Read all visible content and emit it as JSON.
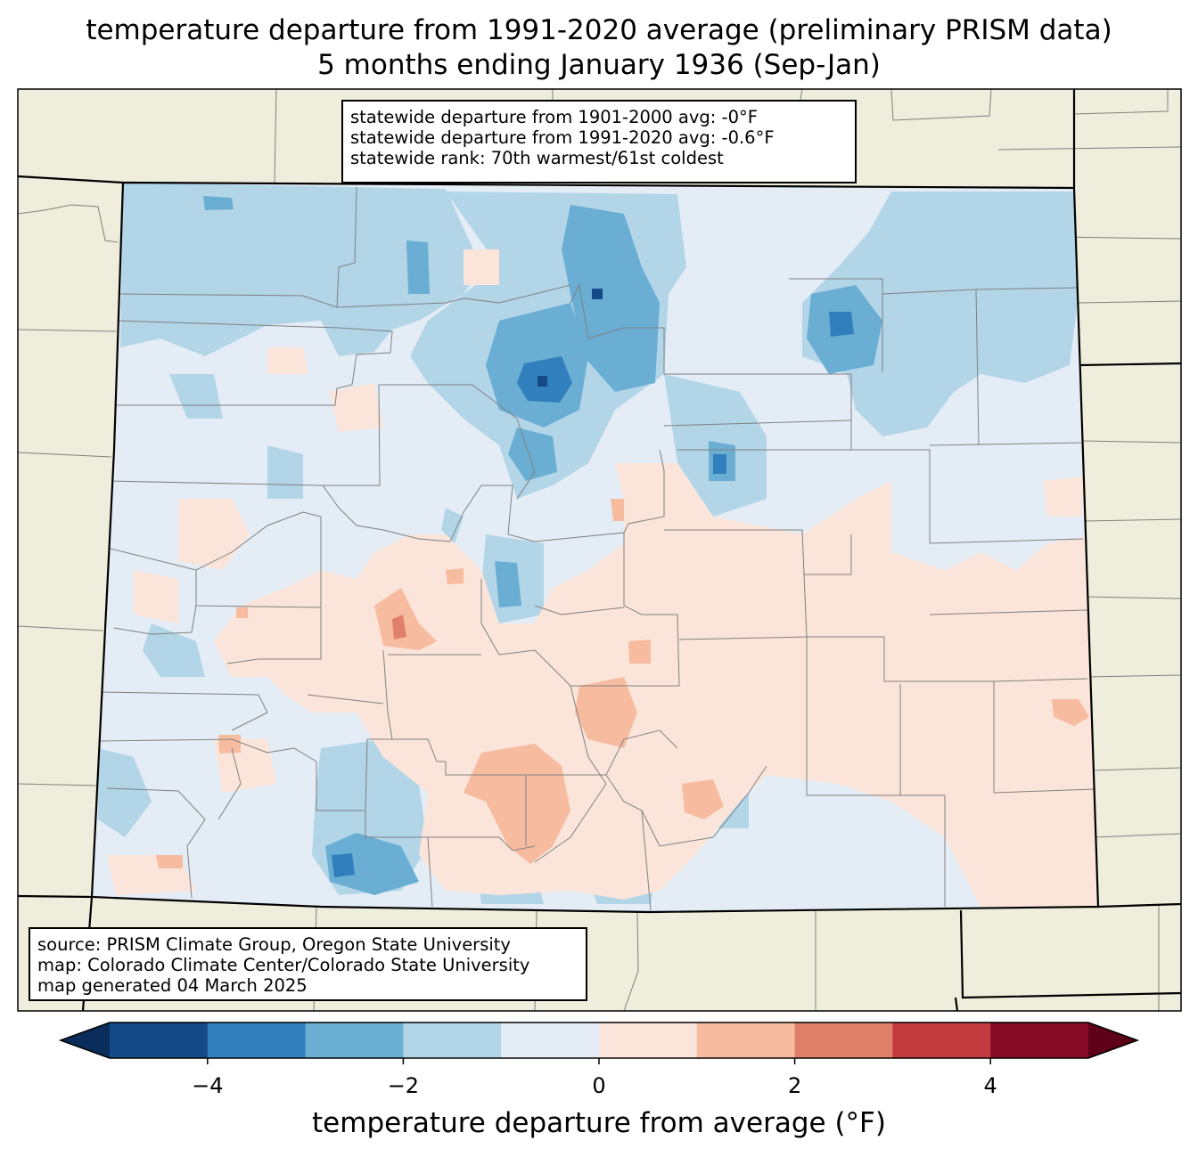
{
  "title": {
    "line1": "temperature departure from 1991-2020 average (preliminary PRISM data)",
    "line2": "5 months ending January 1936 (Sep-Jan)"
  },
  "stats": {
    "line1": "statewide departure from 1901-2000 avg: -0°F",
    "line2": "statewide departure from 1991-2020 avg: -0.6°F",
    "line3": "statewide rank: 70th warmest/61st coldest"
  },
  "source": {
    "line1": "source: PRISM Climate Group, Oregon State University",
    "line2": "map: Colorado Climate Center/Colorado State University",
    "line3": "map generated 04 March 2025"
  },
  "colorbar": {
    "label": "temperature departure from average (°F)",
    "min": -5,
    "max": 5,
    "ticks": [
      {
        "value": -4,
        "label": "−4"
      },
      {
        "value": -2,
        "label": "−2"
      },
      {
        "value": 0,
        "label": "0"
      },
      {
        "value": 2,
        "label": "2"
      },
      {
        "value": 4,
        "label": "4"
      }
    ],
    "under_color": "#0b2d5c",
    "over_color": "#5e0017",
    "bins": [
      {
        "from": -5,
        "to": -4,
        "color": "#144a87"
      },
      {
        "from": -4,
        "to": -3,
        "color": "#3180bd"
      },
      {
        "from": -3,
        "to": -2,
        "color": "#6aaed3"
      },
      {
        "from": -2,
        "to": -1,
        "color": "#b3d5e8"
      },
      {
        "from": -1,
        "to": 0,
        "color": "#e4edf5"
      },
      {
        "from": 0,
        "to": 1,
        "color": "#fbe5da"
      },
      {
        "from": 1,
        "to": 2,
        "color": "#f7bba0"
      },
      {
        "from": 2,
        "to": 3,
        "color": "#e0806a"
      },
      {
        "from": 3,
        "to": 4,
        "color": "#c23b3f"
      },
      {
        "from": 4,
        "to": 5,
        "color": "#870b27"
      }
    ]
  },
  "colors": {
    "land": "#efeddb",
    "border": "#000000",
    "county_line": "#808080"
  }
}
